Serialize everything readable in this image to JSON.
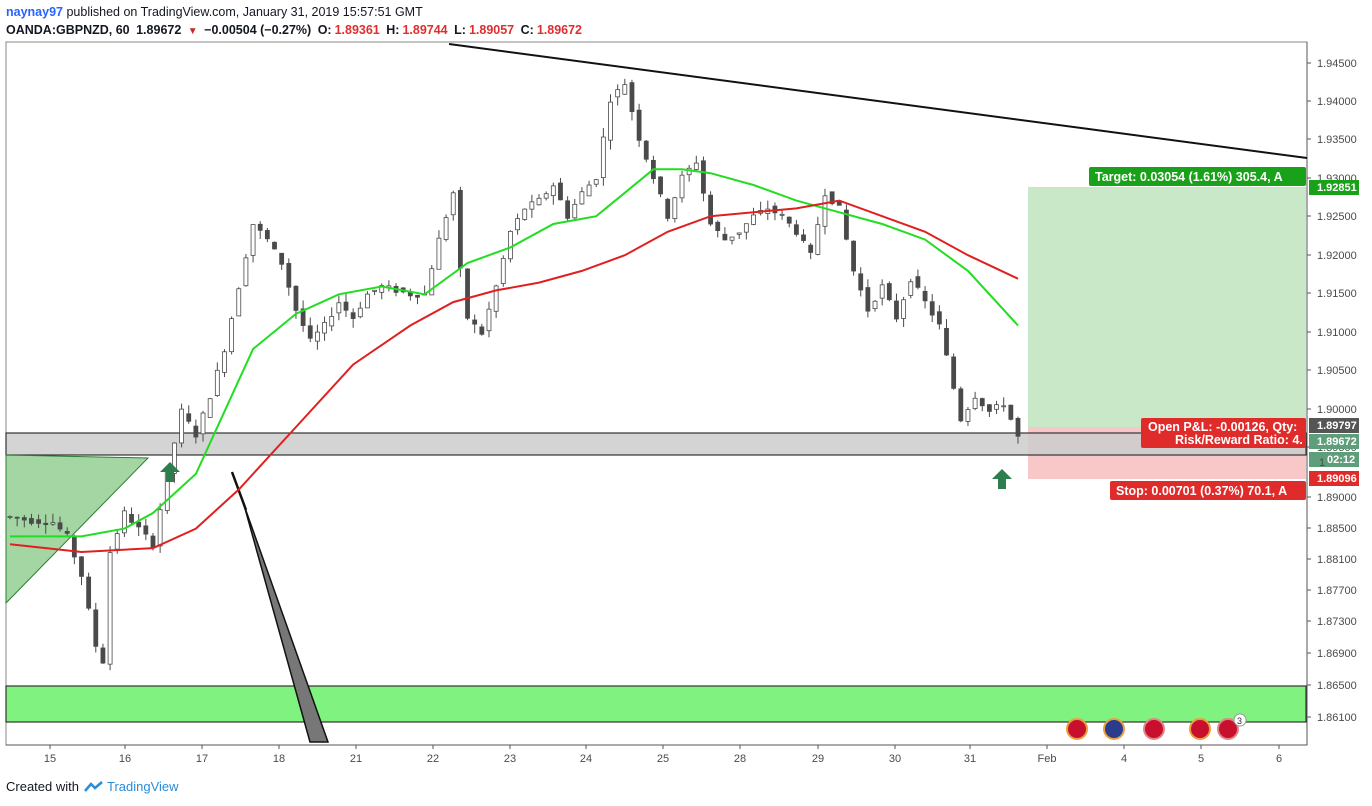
{
  "header": {
    "user": "naynay97",
    "published": "published on TradingView.com, January 31, 2019 15:57:51 GMT",
    "symbol": "OANDA:GBPNZD, 60",
    "last": "1.89672",
    "change": "−0.00504 (−0.27%)",
    "o_label": "O:",
    "o": "1.89361",
    "h_label": "H:",
    "h": "1.89744",
    "l_label": "L:",
    "l": "1.89057",
    "c_label": "C:",
    "c": "1.89672"
  },
  "footer": {
    "created": "Created with",
    "brand": "TradingView"
  },
  "colors": {
    "up": "#4a4a4a",
    "ma_fast": "#22dd22",
    "ma_slow": "#e02020",
    "target_zone": "#c8e8c8",
    "stop_zone": "#f8c8c8",
    "support_zone": "#7ff27f",
    "resistance_band": "#cccccc",
    "triangle": "#66bb66",
    "arrow": "#2e7d4f"
  },
  "chart_data": {
    "type": "line",
    "title": "",
    "xlabel": "",
    "ylabel": "",
    "x_ticks": [
      "15",
      "16",
      "17",
      "18",
      "21",
      "22",
      "23",
      "24",
      "25",
      "28",
      "29",
      "30",
      "31",
      "Feb",
      "4",
      "5",
      "6"
    ],
    "y_ticks": [
      "1.94500",
      "1.94000",
      "1.93500",
      "1.93000",
      "1.92500",
      "1.92000",
      "1.91500",
      "1.91000",
      "1.90500",
      "1.90000",
      "1.89500",
      "1.89000",
      "1.88500",
      "1.88100",
      "1.87700",
      "1.87300",
      "1.86900",
      "1.86500",
      "1.86100"
    ],
    "ylim": [
      1.858,
      1.95
    ],
    "grid": false,
    "price_path": [
      {
        "x": 0,
        "y": 1.8865
      },
      {
        "x": 3,
        "y": 1.886
      },
      {
        "x": 6,
        "y": 1.8858
      },
      {
        "x": 8,
        "y": 1.884
      },
      {
        "x": 10,
        "y": 1.879
      },
      {
        "x": 12,
        "y": 1.87
      },
      {
        "x": 13,
        "y": 1.868
      },
      {
        "x": 14,
        "y": 1.882
      },
      {
        "x": 16,
        "y": 1.887
      },
      {
        "x": 18,
        "y": 1.885
      },
      {
        "x": 20,
        "y": 1.883
      },
      {
        "x": 22,
        "y": 1.892
      },
      {
        "x": 24,
        "y": 1.9
      },
      {
        "x": 26,
        "y": 1.897
      },
      {
        "x": 28,
        "y": 1.902
      },
      {
        "x": 30,
        "y": 1.908
      },
      {
        "x": 32,
        "y": 1.916
      },
      {
        "x": 34,
        "y": 1.924
      },
      {
        "x": 36,
        "y": 1.922
      },
      {
        "x": 38,
        "y": 1.919
      },
      {
        "x": 40,
        "y": 1.913
      },
      {
        "x": 42,
        "y": 1.909
      },
      {
        "x": 44,
        "y": 1.911
      },
      {
        "x": 46,
        "y": 1.914
      },
      {
        "x": 48,
        "y": 1.912
      },
      {
        "x": 50,
        "y": 1.915
      },
      {
        "x": 52,
        "y": 1.916
      },
      {
        "x": 54,
        "y": 1.9155
      },
      {
        "x": 56,
        "y": 1.915
      },
      {
        "x": 58,
        "y": 1.915
      },
      {
        "x": 60,
        "y": 1.922
      },
      {
        "x": 62,
        "y": 1.928
      },
      {
        "x": 63,
        "y": 1.918
      },
      {
        "x": 64,
        "y": 1.912
      },
      {
        "x": 66,
        "y": 1.91
      },
      {
        "x": 68,
        "y": 1.916
      },
      {
        "x": 70,
        "y": 1.923
      },
      {
        "x": 72,
        "y": 1.926
      },
      {
        "x": 74,
        "y": 1.927
      },
      {
        "x": 76,
        "y": 1.929
      },
      {
        "x": 78,
        "y": 1.925
      },
      {
        "x": 80,
        "y": 1.928
      },
      {
        "x": 82,
        "y": 1.93
      },
      {
        "x": 84,
        "y": 1.94
      },
      {
        "x": 86,
        "y": 1.942
      },
      {
        "x": 88,
        "y": 1.935
      },
      {
        "x": 90,
        "y": 1.93
      },
      {
        "x": 92,
        "y": 1.925
      },
      {
        "x": 94,
        "y": 1.93
      },
      {
        "x": 96,
        "y": 1.932
      },
      {
        "x": 98,
        "y": 1.924
      },
      {
        "x": 100,
        "y": 1.922
      },
      {
        "x": 102,
        "y": 1.923
      },
      {
        "x": 104,
        "y": 1.925
      },
      {
        "x": 106,
        "y": 1.926
      },
      {
        "x": 108,
        "y": 1.925
      },
      {
        "x": 110,
        "y": 1.923
      },
      {
        "x": 112,
        "y": 1.92
      },
      {
        "x": 114,
        "y": 1.928
      },
      {
        "x": 116,
        "y": 1.926
      },
      {
        "x": 118,
        "y": 1.918
      },
      {
        "x": 120,
        "y": 1.913
      },
      {
        "x": 122,
        "y": 1.916
      },
      {
        "x": 124,
        "y": 1.912
      },
      {
        "x": 126,
        "y": 1.917
      },
      {
        "x": 128,
        "y": 1.914
      },
      {
        "x": 130,
        "y": 1.911
      },
      {
        "x": 132,
        "y": 1.903
      },
      {
        "x": 133,
        "y": 1.899
      },
      {
        "x": 135,
        "y": 1.902
      },
      {
        "x": 137,
        "y": 1.9
      },
      {
        "x": 139,
        "y": 1.901
      },
      {
        "x": 140,
        "y": 1.899
      },
      {
        "x": 141,
        "y": 1.8967
      }
    ],
    "series": [
      {
        "name": "",
        "color": "#22dd22",
        "values": [
          {
            "x": 0,
            "y": 1.884
          },
          {
            "x": 10,
            "y": 1.884
          },
          {
            "x": 16,
            "y": 1.885
          },
          {
            "x": 20,
            "y": 1.887
          },
          {
            "x": 26,
            "y": 1.892
          },
          {
            "x": 30,
            "y": 1.9
          },
          {
            "x": 34,
            "y": 1.908
          },
          {
            "x": 40,
            "y": 1.9125
          },
          {
            "x": 46,
            "y": 1.915
          },
          {
            "x": 52,
            "y": 1.916
          },
          {
            "x": 58,
            "y": 1.915
          },
          {
            "x": 64,
            "y": 1.919
          },
          {
            "x": 70,
            "y": 1.921
          },
          {
            "x": 76,
            "y": 1.924
          },
          {
            "x": 82,
            "y": 1.925
          },
          {
            "x": 86,
            "y": 1.928
          },
          {
            "x": 90,
            "y": 1.931
          },
          {
            "x": 94,
            "y": 1.931
          },
          {
            "x": 98,
            "y": 1.9305
          },
          {
            "x": 104,
            "y": 1.929
          },
          {
            "x": 110,
            "y": 1.927
          },
          {
            "x": 116,
            "y": 1.9255
          },
          {
            "x": 122,
            "y": 1.924
          },
          {
            "x": 128,
            "y": 1.922
          },
          {
            "x": 134,
            "y": 1.918
          },
          {
            "x": 141,
            "y": 1.911
          }
        ]
      },
      {
        "name": "",
        "color": "#e02020",
        "values": [
          {
            "x": 0,
            "y": 1.883
          },
          {
            "x": 10,
            "y": 1.882
          },
          {
            "x": 20,
            "y": 1.8825
          },
          {
            "x": 26,
            "y": 1.885
          },
          {
            "x": 32,
            "y": 1.89
          },
          {
            "x": 40,
            "y": 1.898
          },
          {
            "x": 48,
            "y": 1.906
          },
          {
            "x": 56,
            "y": 1.911
          },
          {
            "x": 62,
            "y": 1.914
          },
          {
            "x": 68,
            "y": 1.9155
          },
          {
            "x": 74,
            "y": 1.9165
          },
          {
            "x": 80,
            "y": 1.918
          },
          {
            "x": 86,
            "y": 1.92
          },
          {
            "x": 92,
            "y": 1.923
          },
          {
            "x": 98,
            "y": 1.925
          },
          {
            "x": 104,
            "y": 1.9255
          },
          {
            "x": 110,
            "y": 1.926
          },
          {
            "x": 116,
            "y": 1.927
          },
          {
            "x": 122,
            "y": 1.925
          },
          {
            "x": 128,
            "y": 1.923
          },
          {
            "x": 134,
            "y": 1.92
          },
          {
            "x": 141,
            "y": 1.917
          }
        ]
      }
    ],
    "position": {
      "target_label": "Target: 0.03054 (1.61%) 305.4, A",
      "stop_label": "Stop: 0.00701 (0.37%) 70.1, A",
      "pnl_label": "Open P&L: -0.00126, Qty:",
      "rr_label": "Risk/Reward Ratio: 4.",
      "target_price": "1.92851",
      "entry_price": "1.89797",
      "current_price": "1.89672",
      "countdown": "02:12",
      "stop_price": "1.89096",
      "partial_label": "1"
    },
    "event_badges": [
      "GB",
      "AU",
      "GB",
      "GB",
      "GB"
    ],
    "event_badge_count": "3"
  }
}
